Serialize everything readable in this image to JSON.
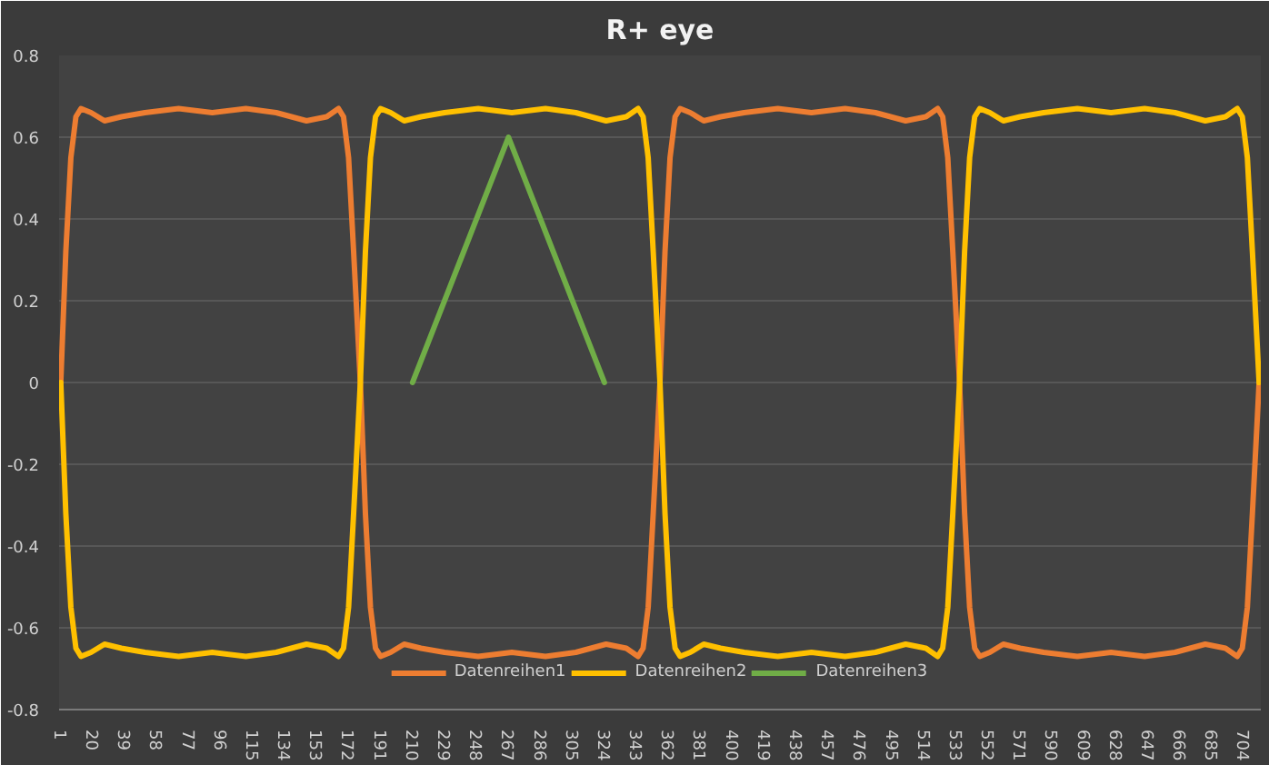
{
  "chart_data": {
    "type": "line",
    "title": "R+ eye",
    "x": [
      1,
      4,
      7,
      10,
      13,
      19,
      27,
      37,
      51,
      71,
      91,
      111,
      129,
      147,
      159,
      166,
      169,
      172,
      175,
      179,
      182,
      185,
      188,
      191,
      197,
      205,
      215,
      229,
      249,
      269,
      289,
      307,
      325,
      337,
      344,
      347,
      350,
      353,
      357,
      360,
      363,
      366,
      369,
      375,
      383,
      393,
      407,
      427,
      447,
      467,
      485,
      503,
      515,
      522,
      525,
      528,
      531,
      535,
      538,
      541,
      544,
      547,
      553,
      561,
      571,
      585,
      605,
      625,
      645,
      663,
      681,
      693,
      700,
      703,
      706,
      709,
      713
    ],
    "series": [
      {
        "name": "Datenreihen1",
        "color": "#ed7d31",
        "values": [
          0,
          0.32,
          0.55,
          0.65,
          0.67,
          0.66,
          0.64,
          0.65,
          0.66,
          0.67,
          0.66,
          0.67,
          0.66,
          0.64,
          0.65,
          0.67,
          0.65,
          0.55,
          0.32,
          0,
          -0.32,
          -0.55,
          -0.65,
          -0.67,
          -0.66,
          -0.64,
          -0.65,
          -0.66,
          -0.67,
          -0.66,
          -0.67,
          -0.66,
          -0.64,
          -0.65,
          -0.67,
          -0.65,
          -0.55,
          -0.32,
          0,
          0.32,
          0.55,
          0.65,
          0.67,
          0.66,
          0.64,
          0.65,
          0.66,
          0.67,
          0.66,
          0.67,
          0.66,
          0.64,
          0.65,
          0.67,
          0.65,
          0.55,
          0.32,
          0,
          -0.32,
          -0.55,
          -0.65,
          -0.67,
          -0.66,
          -0.64,
          -0.65,
          -0.66,
          -0.67,
          -0.66,
          -0.67,
          -0.66,
          -0.64,
          -0.65,
          -0.67,
          -0.65,
          -0.55,
          -0.32,
          0
        ]
      },
      {
        "name": "Datenreihen2",
        "color": "#ffc000",
        "values": [
          0,
          -0.32,
          -0.55,
          -0.65,
          -0.67,
          -0.66,
          -0.64,
          -0.65,
          -0.66,
          -0.67,
          -0.66,
          -0.67,
          -0.66,
          -0.64,
          -0.65,
          -0.67,
          -0.65,
          -0.55,
          -0.32,
          0,
          0.32,
          0.55,
          0.65,
          0.67,
          0.66,
          0.64,
          0.65,
          0.66,
          0.67,
          0.66,
          0.67,
          0.66,
          0.64,
          0.65,
          0.67,
          0.65,
          0.55,
          0.32,
          0,
          -0.32,
          -0.55,
          -0.65,
          -0.67,
          -0.66,
          -0.64,
          -0.65,
          -0.66,
          -0.67,
          -0.66,
          -0.67,
          -0.66,
          -0.64,
          -0.65,
          -0.67,
          -0.65,
          -0.55,
          -0.32,
          0,
          0.32,
          0.55,
          0.65,
          0.67,
          0.66,
          0.64,
          0.65,
          0.66,
          0.67,
          0.66,
          0.67,
          0.66,
          0.64,
          0.65,
          0.67,
          0.65,
          0.55,
          0.32,
          0
        ]
      },
      {
        "name": "Datenreihen3",
        "color": "#70ad47",
        "x": [
          210,
          267,
          324
        ],
        "values": [
          0,
          0.6,
          0
        ]
      }
    ],
    "xlim": [
      0,
      714
    ],
    "ylim": [
      -0.8,
      0.8
    ],
    "xticks": [
      1,
      20,
      39,
      58,
      77,
      96,
      115,
      134,
      153,
      172,
      191,
      210,
      229,
      248,
      267,
      286,
      305,
      324,
      343,
      362,
      381,
      400,
      419,
      438,
      457,
      476,
      495,
      514,
      533,
      552,
      571,
      590,
      609,
      628,
      647,
      666,
      685,
      704
    ],
    "yticks": [
      -0.8,
      -0.6,
      -0.4,
      -0.2,
      0,
      0.2,
      0.4,
      0.6,
      0.8
    ],
    "grid": "y",
    "legend": "bottom",
    "line_style": "solid"
  }
}
